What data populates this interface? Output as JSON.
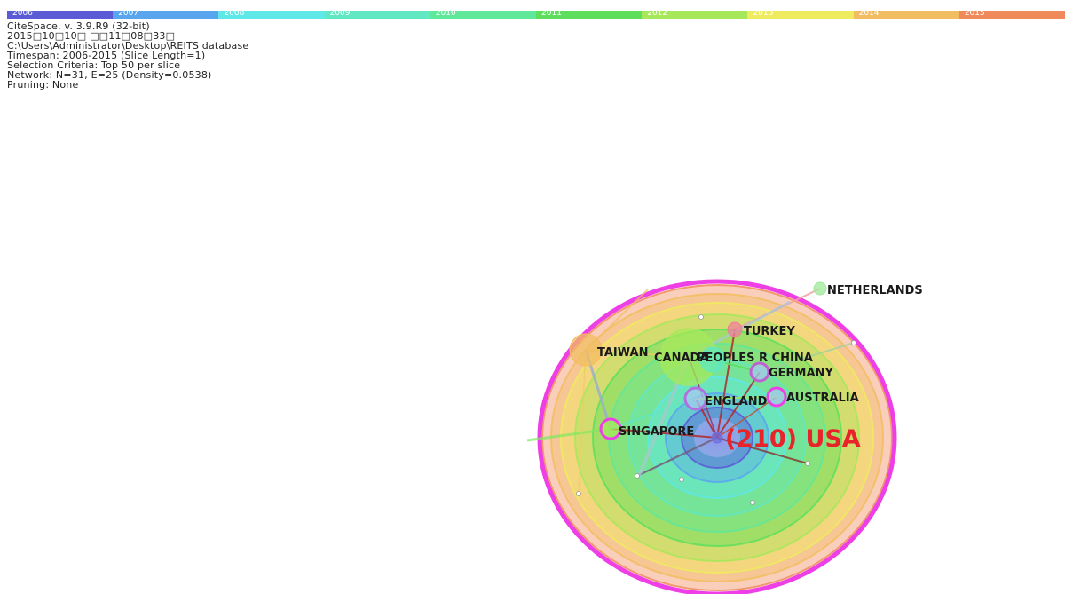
{
  "timeline": {
    "years": [
      {
        "label": "2006",
        "color": "#5b5bd6"
      },
      {
        "label": "2007",
        "color": "#5aa6ee"
      },
      {
        "label": "2008",
        "color": "#5ee8e8"
      },
      {
        "label": "2009",
        "color": "#5fe8c2"
      },
      {
        "label": "2010",
        "color": "#5fe89a"
      },
      {
        "label": "2011",
        "color": "#5ddf5d"
      },
      {
        "label": "2012",
        "color": "#a6e85a"
      },
      {
        "label": "2013",
        "color": "#eeeb5f"
      },
      {
        "label": "2014",
        "color": "#f2bd60"
      },
      {
        "label": "2015",
        "color": "#f08a5a"
      }
    ]
  },
  "info": {
    "line1": "CiteSpace, v. 3.9.R9 (32-bit)",
    "line2": "2015□10□10□ □□11□08□33□",
    "line3": "C:\\Users\\Administrator\\Desktop\\REITS database",
    "line4": "Timespan: 2006-2015 (Slice Length=1)",
    "line5": "Selection Criteria: Top 50 per slice",
    "line6": "Network: N=31, E=25 (Density=0.0538)",
    "line7": "Pruning: None"
  },
  "network": {
    "nodes": [
      {
        "id": "usa",
        "label": "(210) USA"
      },
      {
        "id": "netherlands",
        "label": "NETHERLANDS"
      },
      {
        "id": "turkey",
        "label": "TURKEY"
      },
      {
        "id": "taiwan",
        "label": "TAIWAN"
      },
      {
        "id": "canada",
        "label": "CANADA"
      },
      {
        "id": "peoples-r-china",
        "label": "PEOPLES R CHINA"
      },
      {
        "id": "germany",
        "label": "GERMANY"
      },
      {
        "id": "england",
        "label": "ENGLAND"
      },
      {
        "id": "australia",
        "label": "AUSTRALIA"
      },
      {
        "id": "singapore",
        "label": "SINGAPORE"
      }
    ],
    "ring_colors": [
      "#f08a5a",
      "#f2bd60",
      "#eeeb5f",
      "#a6e85a",
      "#5ddf5d",
      "#5fe89a",
      "#5fe8c2",
      "#5ee8e8",
      "#5aa6ee",
      "#5b5bd6"
    ],
    "centrality_ring_color": "#ee3fe6",
    "label_color": "#1a1a1a",
    "usa_label_color": "#e8242a"
  }
}
